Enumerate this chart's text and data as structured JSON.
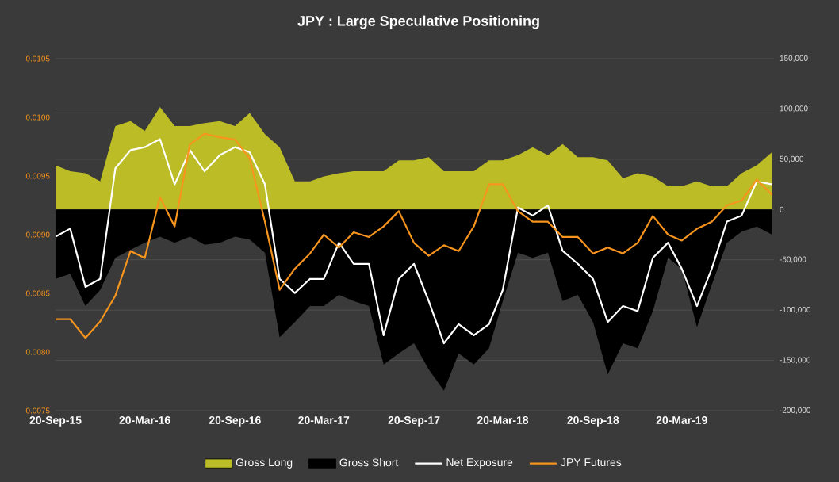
{
  "chart_data": {
    "type": "area",
    "title": "JPY : Large Speculative Positioning",
    "x": [
      "2015-09-20",
      "2015-10-20",
      "2015-11-20",
      "2015-12-20",
      "2016-01-20",
      "2016-02-20",
      "2016-03-20",
      "2016-04-20",
      "2016-05-20",
      "2016-06-20",
      "2016-07-20",
      "2016-08-20",
      "2016-09-20",
      "2016-10-20",
      "2016-11-20",
      "2016-12-20",
      "2017-01-20",
      "2017-02-20",
      "2017-03-20",
      "2017-04-20",
      "2017-05-20",
      "2017-06-20",
      "2017-07-20",
      "2017-08-20",
      "2017-09-20",
      "2017-10-20",
      "2017-11-20",
      "2017-12-20",
      "2018-01-20",
      "2018-02-20",
      "2018-03-20",
      "2018-04-20",
      "2018-05-20",
      "2018-06-20",
      "2018-07-20",
      "2018-08-20",
      "2018-09-20",
      "2018-10-20",
      "2018-11-20",
      "2018-12-20",
      "2019-01-20",
      "2019-02-20",
      "2019-03-20",
      "2019-04-20",
      "2019-05-20",
      "2019-06-20",
      "2019-07-20",
      "2019-08-20",
      "2019-09-20"
    ],
    "series": [
      {
        "name": "Gross Long",
        "axis": "y2",
        "color": "#bcbc26",
        "values": [
          44000,
          38000,
          36000,
          28000,
          83000,
          88000,
          78000,
          102000,
          83000,
          83000,
          86000,
          88000,
          83000,
          96000,
          75000,
          62000,
          28000,
          28000,
          33000,
          36000,
          38000,
          38000,
          38000,
          49000,
          49000,
          52000,
          38000,
          38000,
          38000,
          49000,
          49000,
          54000,
          62000,
          54000,
          65000,
          52000,
          52000,
          49000,
          31000,
          36000,
          33000,
          23000,
          23000,
          28000,
          23000,
          23000,
          36000,
          44000,
          57000
        ]
      },
      {
        "name": "Gross Short",
        "axis": "y2",
        "color": "#000000",
        "values": [
          -69000,
          -64000,
          -96000,
          -80000,
          -48000,
          -40000,
          -33000,
          -27000,
          -33000,
          -27000,
          -35000,
          -33000,
          -27000,
          -30000,
          -43000,
          -127000,
          -112000,
          -96000,
          -96000,
          -85000,
          -91000,
          -96000,
          -154000,
          -143000,
          -133000,
          -159000,
          -180000,
          -143000,
          -154000,
          -138000,
          -91000,
          -43000,
          -48000,
          -43000,
          -91000,
          -85000,
          -112000,
          -164000,
          -133000,
          -138000,
          -101000,
          -48000,
          -59000,
          -117000,
          -75000,
          -33000,
          -22000,
          -17000,
          -25000
        ]
      },
      {
        "name": "Net Exposure",
        "type": "line",
        "axis": "y2",
        "color": "#ffffff",
        "values": [
          -27000,
          -19000,
          -77000,
          -69000,
          41000,
          59000,
          62000,
          70000,
          25000,
          59000,
          38000,
          54000,
          62000,
          57000,
          25000,
          -69000,
          -83000,
          -69000,
          -69000,
          -33000,
          -54000,
          -54000,
          -125000,
          -69000,
          -54000,
          -91000,
          -133000,
          -114000,
          -125000,
          -114000,
          -80000,
          2000,
          -6000,
          4000,
          -41000,
          -54000,
          -69000,
          -112000,
          -96000,
          -101000,
          -48000,
          -33000,
          -59000,
          -96000,
          -59000,
          -12000,
          -6000,
          28000,
          25000
        ]
      },
      {
        "name": "JPY Futures",
        "type": "line",
        "axis": "y",
        "color": "#f7941d",
        "values": [
          0.00828,
          0.00828,
          0.00812,
          0.00826,
          0.00848,
          0.00886,
          0.0088,
          0.00932,
          0.00907,
          0.00977,
          0.00986,
          0.00983,
          0.00981,
          0.00965,
          0.00911,
          0.00853,
          0.00871,
          0.00884,
          0.009,
          0.00889,
          0.00902,
          0.00898,
          0.00907,
          0.0092,
          0.00893,
          0.00882,
          0.00891,
          0.00886,
          0.00907,
          0.00943,
          0.00943,
          0.0092,
          0.00911,
          0.00911,
          0.00898,
          0.00898,
          0.00884,
          0.00889,
          0.00884,
          0.00893,
          0.00916,
          0.009,
          0.00895,
          0.00905,
          0.00911,
          0.00925,
          0.00929,
          0.00947,
          0.00934
        ]
      }
    ],
    "xlim": [
      "2015-09-20",
      "2019-09-24"
    ],
    "xticks": [
      {
        "value": "2015-09-20",
        "label": "20-Sep-15"
      },
      {
        "value": "2016-03-20",
        "label": "20-Mar-16"
      },
      {
        "value": "2016-09-20",
        "label": "20-Sep-16"
      },
      {
        "value": "2017-03-20",
        "label": "20-Mar-17"
      },
      {
        "value": "2017-09-20",
        "label": "20-Sep-17"
      },
      {
        "value": "2018-03-20",
        "label": "20-Mar-18"
      },
      {
        "value": "2018-09-20",
        "label": "20-Sep-18"
      },
      {
        "value": "2019-03-20",
        "label": "20-Mar-19"
      }
    ],
    "ylim": [
      0.0075,
      0.0105
    ],
    "yticks": [
      {
        "value": 0.0075,
        "label": "0.0075"
      },
      {
        "value": 0.008,
        "label": "0.0080"
      },
      {
        "value": 0.0085,
        "label": "0.0085"
      },
      {
        "value": 0.009,
        "label": "0.0090"
      },
      {
        "value": 0.0095,
        "label": "0.0095"
      },
      {
        "value": 0.01,
        "label": "0.0100"
      },
      {
        "value": 0.0105,
        "label": "0.0105"
      }
    ],
    "y2lim": [
      -200000,
      150000
    ],
    "y2ticks": [
      {
        "value": -200000,
        "label": "-200,000"
      },
      {
        "value": -150000,
        "label": "-150,000"
      },
      {
        "value": -100000,
        "label": "-100,000"
      },
      {
        "value": -50000,
        "label": "-50,000"
      },
      0,
      {
        "value": 50000,
        "label": "50,000"
      },
      {
        "value": 100000,
        "label": "100,000"
      },
      {
        "value": 150000,
        "label": "150,000"
      }
    ],
    "grid": "y",
    "legend": "bottom"
  }
}
